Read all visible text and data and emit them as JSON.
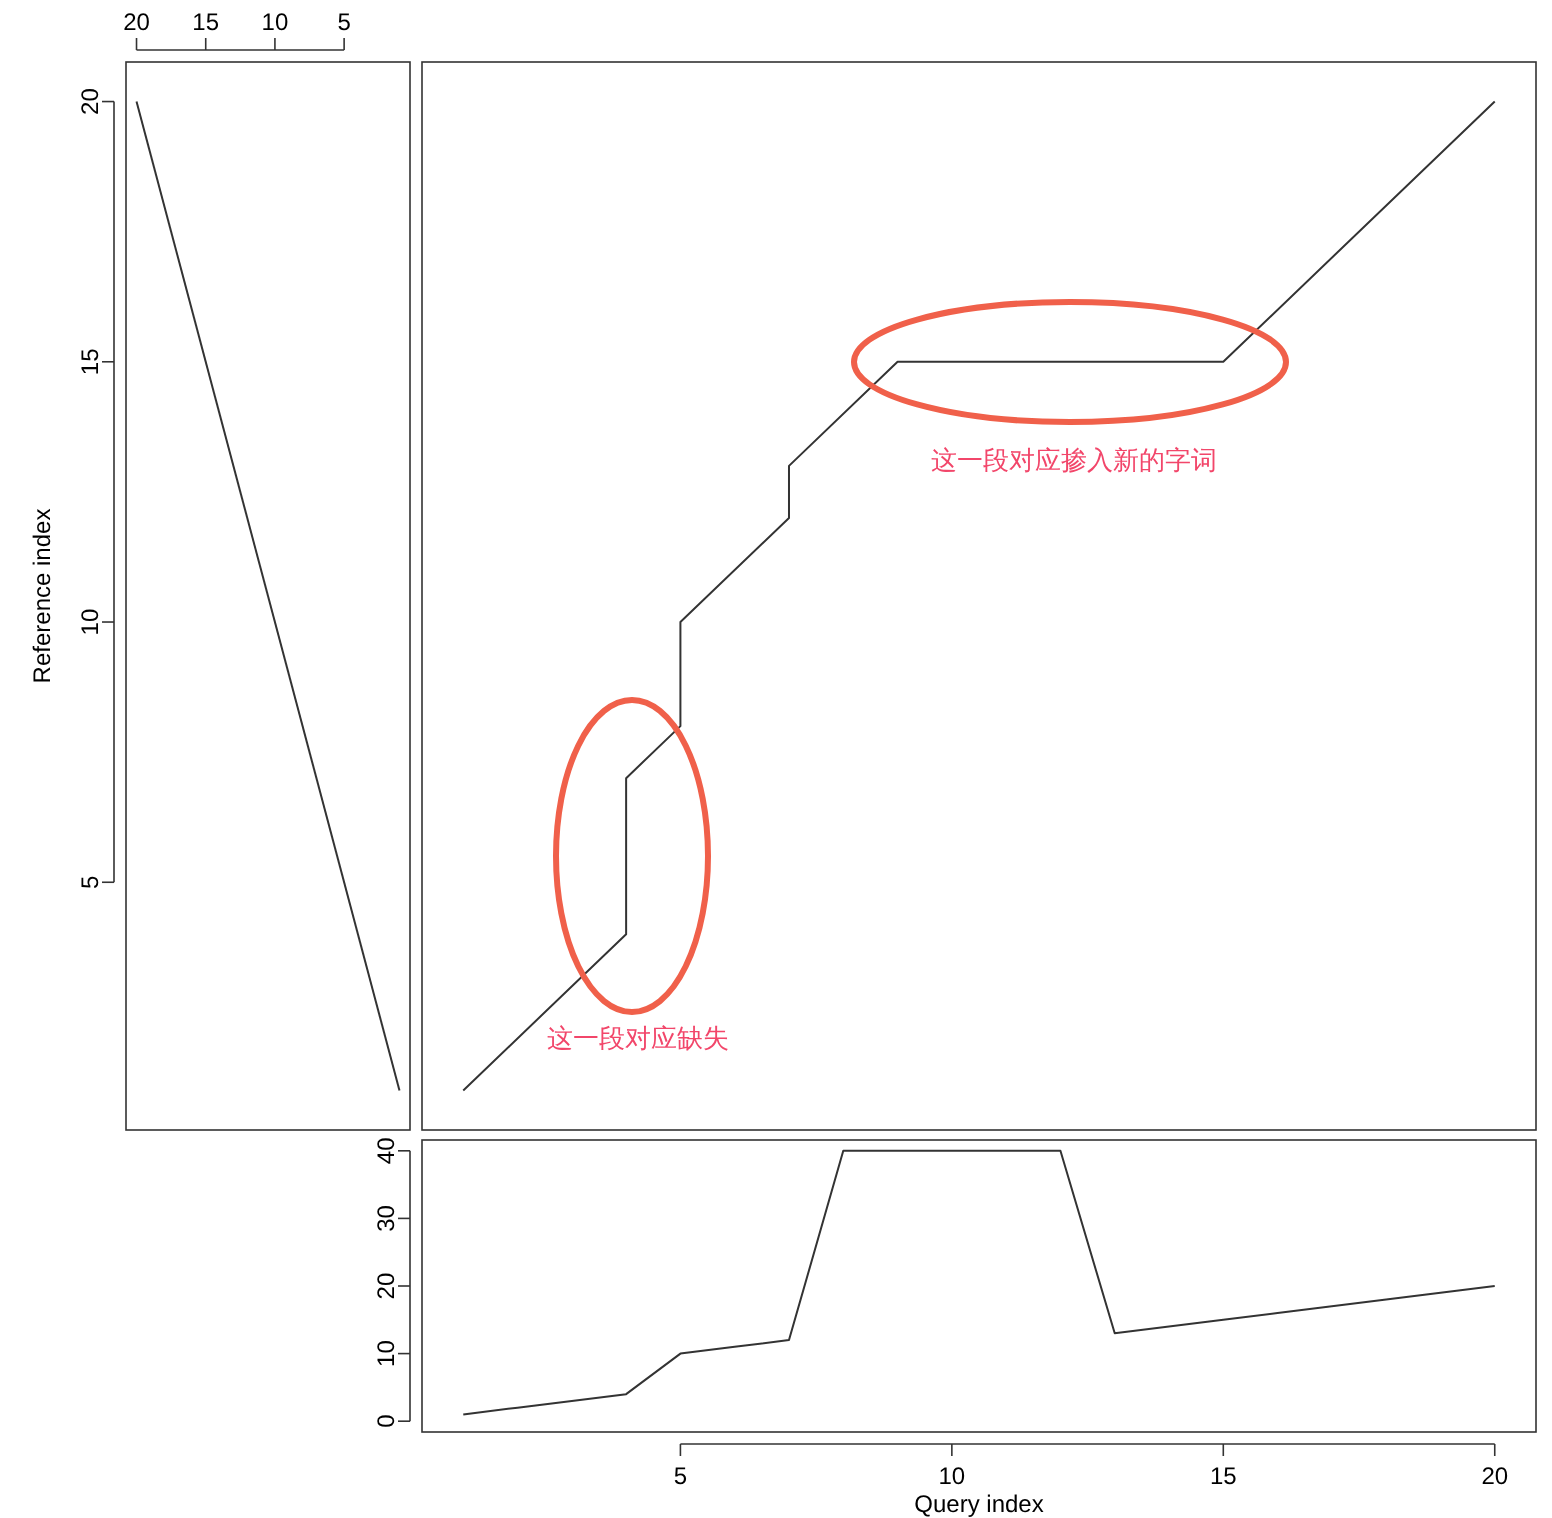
{
  "chart_data": [
    {
      "type": "line",
      "ylabel": "Reference index",
      "x": [
        20,
        1
      ],
      "values": [
        20,
        1
      ],
      "color": "#333333",
      "xlim": [
        20.76,
        0.24
      ],
      "xticks": [
        20,
        15,
        10,
        5
      ],
      "ylim": [
        0.24,
        20.76
      ],
      "yticks": [
        5,
        10,
        15,
        20
      ]
    },
    {
      "type": "line",
      "x": [
        1,
        4,
        4,
        5,
        5,
        7,
        7,
        9,
        15,
        20
      ],
      "values": [
        1,
        4,
        7,
        8,
        10,
        12,
        13,
        15,
        15,
        20
      ],
      "color": "#333333",
      "xlim": [
        0.24,
        20.76
      ],
      "ylim": [
        0.24,
        20.76
      ],
      "annotations": [
        "这一段对应缺失",
        "这一段对应掺入新的字词"
      ]
    },
    {
      "type": "line",
      "xlabel": "Query index",
      "x": [
        1,
        2,
        3,
        4,
        5,
        6,
        7,
        8,
        9,
        10,
        11,
        12,
        13,
        14,
        15,
        16,
        17,
        18,
        19,
        20
      ],
      "values": [
        1,
        2,
        3,
        4,
        10,
        11,
        12,
        40,
        40,
        40,
        40,
        40,
        13,
        14,
        15,
        16,
        17,
        18,
        19,
        20
      ],
      "color": "#333333",
      "xlim": [
        0.24,
        20.76
      ],
      "xticks": [
        5,
        10,
        15,
        20
      ],
      "ylim": [
        -1.6,
        41.6
      ],
      "yticks": [
        0,
        10,
        20,
        30,
        40
      ]
    }
  ]
}
